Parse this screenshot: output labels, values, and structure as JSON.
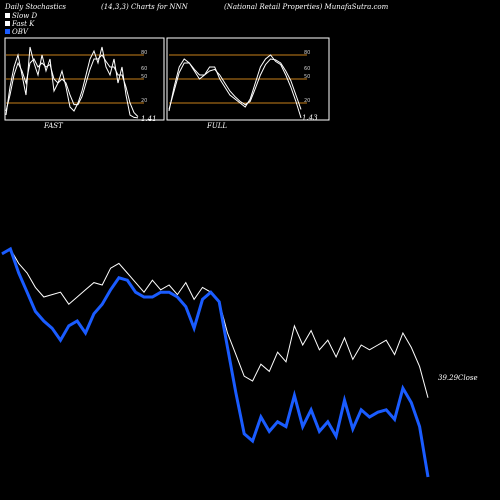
{
  "header": {
    "title": "Daily Stochastics",
    "params": "(14,3,3) Charts for NNN",
    "company": "(National Retail Properties) MunafaSutra.com"
  },
  "legend": [
    {
      "name": "Slow D",
      "color": "#ffffff"
    },
    {
      "name": "Fast K",
      "color": "#ffffff"
    },
    {
      "name": "OBV",
      "color": "#1a5cff"
    }
  ],
  "colors": {
    "background": "#000000",
    "panel_border": "#ffffff",
    "level_line": "#c87f1a",
    "stoch_line": "#ffffff",
    "price_line": "#ffffff",
    "obv_line": "#1a5cff"
  },
  "chart_data": [
    {
      "type": "line",
      "title": "FAST",
      "last_value_label": "1.41",
      "yticks": [
        20,
        50,
        60,
        80
      ],
      "level_lines": [
        20,
        50,
        80
      ],
      "ylim": [
        0,
        100
      ],
      "series": [
        {
          "name": "Fast K",
          "values": [
            5,
            40,
            65,
            80,
            55,
            30,
            90,
            70,
            55,
            80,
            60,
            75,
            35,
            45,
            60,
            40,
            15,
            10,
            20,
            35,
            55,
            75,
            85,
            70,
            90,
            65,
            55,
            75,
            45,
            65,
            30,
            5,
            2,
            1.41
          ]
        },
        {
          "name": "Slow D",
          "values": [
            10,
            30,
            55,
            70,
            60,
            45,
            70,
            75,
            65,
            70,
            65,
            68,
            50,
            45,
            50,
            45,
            30,
            18,
            18,
            28,
            45,
            62,
            75,
            75,
            80,
            72,
            65,
            65,
            55,
            55,
            40,
            20,
            8,
            3
          ]
        }
      ]
    },
    {
      "type": "line",
      "title": "FULL",
      "last_value_label": "1.43",
      "yticks": [
        20,
        50,
        60,
        80
      ],
      "level_lines": [
        20,
        50,
        80
      ],
      "ylim": [
        0,
        100
      ],
      "series": [
        {
          "name": "Fast K",
          "values": [
            10,
            40,
            65,
            75,
            70,
            60,
            50,
            55,
            65,
            65,
            50,
            40,
            30,
            25,
            20,
            15,
            25,
            45,
            65,
            75,
            80,
            72,
            68,
            55,
            40,
            22,
            1.43
          ]
        },
        {
          "name": "Slow D",
          "values": [
            12,
            35,
            58,
            70,
            70,
            62,
            55,
            55,
            60,
            62,
            55,
            45,
            35,
            28,
            22,
            18,
            22,
            38,
            55,
            68,
            75,
            74,
            70,
            60,
            48,
            30,
            12
          ]
        }
      ]
    },
    {
      "type": "line",
      "title": "",
      "price_label": "39.29Close",
      "ylim": [
        0,
        100
      ],
      "series": [
        {
          "name": "Close",
          "values": [
            88,
            90,
            84,
            80,
            74,
            70,
            71,
            72,
            67,
            70,
            73,
            76,
            75,
            82,
            84,
            80,
            76,
            72,
            77,
            73,
            75,
            71,
            76,
            69,
            74,
            72,
            68,
            55,
            46,
            37,
            35,
            42,
            39,
            47,
            43,
            58,
            50,
            56,
            48,
            52,
            45,
            53,
            44,
            50,
            48,
            50,
            52,
            46,
            55,
            49,
            41,
            28
          ]
        },
        {
          "name": "OBV",
          "values": [
            88,
            90,
            80,
            72,
            64,
            60,
            57,
            52,
            58,
            60,
            55,
            63,
            67,
            73,
            78,
            77,
            72,
            70,
            70,
            72,
            72,
            70,
            66,
            57,
            69,
            72,
            68,
            49,
            30,
            13,
            10,
            20,
            14,
            18,
            16,
            29,
            16,
            23,
            14,
            18,
            12,
            27,
            15,
            23,
            20,
            22,
            23,
            19,
            32,
            26,
            16,
            -5
          ]
        }
      ]
    }
  ]
}
